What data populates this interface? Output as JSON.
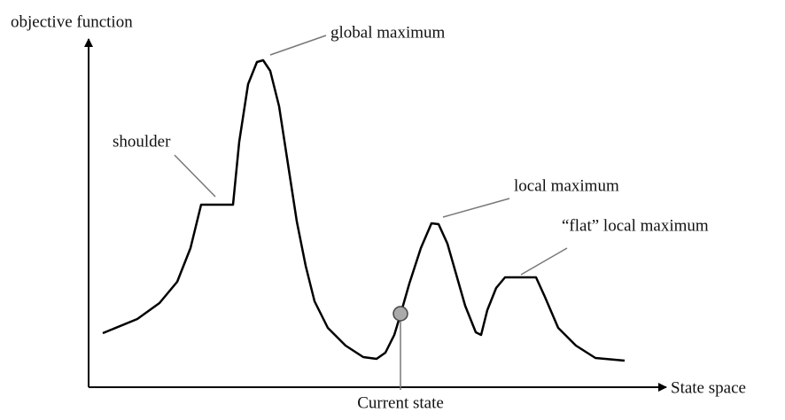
{
  "axes": {
    "y_label": "objective function",
    "x_label": "State space"
  },
  "annotations": {
    "global_maximum": "global maximum",
    "shoulder": "shoulder",
    "local_maximum": "local maximum",
    "flat_local_maximum": "“flat” local maximum",
    "current_state": "Current state"
  }
}
